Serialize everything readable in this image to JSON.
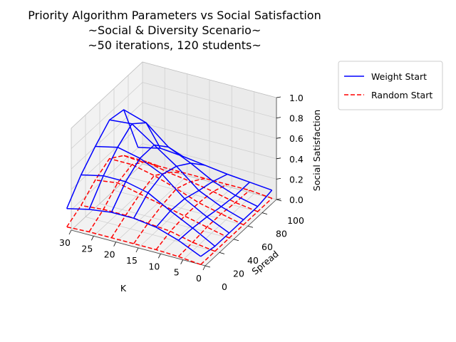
{
  "chart_data": {
    "type": "wireframe-3d",
    "title": "Priority Algorithm Parameters vs Social Satisfaction",
    "subtitle_lines": [
      "~Social & Diversity Scenario~",
      "~50 iterations, 120 students~"
    ],
    "xlabel": "K",
    "ylabel": "Spread",
    "zlabel": "Social Satisfaction",
    "x_ticks": [
      "0",
      "5",
      "10",
      "15",
      "20",
      "25",
      "30"
    ],
    "y_ticks": [
      "0",
      "20",
      "40",
      "60",
      "80",
      "100"
    ],
    "z_ticks": [
      "0.0",
      "0.2",
      "0.4",
      "0.6",
      "0.8",
      "1.0"
    ],
    "xlim": [
      0,
      30
    ],
    "ylim": [
      0,
      100
    ],
    "zlim": [
      0,
      1
    ],
    "grid": true,
    "legend_position": "upper right, outside plot",
    "K": [
      1,
      6,
      11,
      16,
      21,
      26,
      31
    ],
    "Spread": [
      0,
      20,
      40,
      60,
      80,
      100
    ],
    "series": [
      {
        "name": "Weight Start",
        "color": "#0000ff",
        "style": "solid",
        "z": [
          [
            0.08,
            0.05,
            0.05,
            0.05,
            0.05,
            0.08
          ],
          [
            0.18,
            0.17,
            0.15,
            0.12,
            0.1,
            0.1
          ],
          [
            0.25,
            0.28,
            0.27,
            0.22,
            0.18,
            0.12
          ],
          [
            0.28,
            0.4,
            0.45,
            0.4,
            0.3,
            0.15
          ],
          [
            0.28,
            0.45,
            0.55,
            0.55,
            0.4,
            0.18
          ],
          [
            0.25,
            0.45,
            0.6,
            0.7,
            0.58,
            0.2
          ],
          [
            0.2,
            0.4,
            0.55,
            0.68,
            0.65,
            0.15
          ]
        ]
      },
      {
        "name": "Random Start",
        "color": "#ff0000",
        "style": "dashed",
        "z": [
          [
            0.0,
            0.0,
            0.0,
            0.0,
            0.0,
            0.0
          ],
          [
            0.02,
            0.03,
            0.05,
            0.05,
            0.03,
            0.02
          ],
          [
            0.03,
            0.08,
            0.1,
            0.1,
            0.08,
            0.02
          ],
          [
            0.03,
            0.1,
            0.15,
            0.18,
            0.12,
            0.02
          ],
          [
            0.03,
            0.12,
            0.2,
            0.25,
            0.15,
            0.02
          ],
          [
            0.03,
            0.12,
            0.25,
            0.3,
            0.2,
            0.02
          ],
          [
            0.02,
            0.1,
            0.22,
            0.3,
            0.2,
            0.02
          ]
        ]
      }
    ]
  }
}
